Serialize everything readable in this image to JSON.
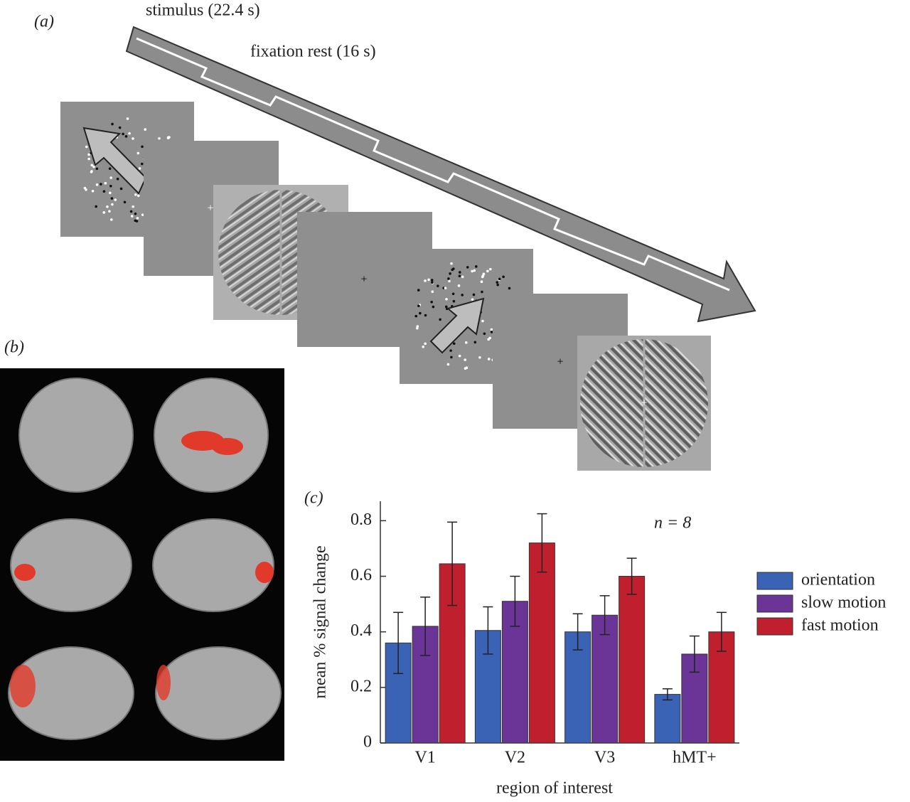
{
  "panels": {
    "a": "(a)",
    "b": "(b)",
    "c": "(c)"
  },
  "stimulus_diagram": {
    "stimulus_label": "stimulus (22.4 s)",
    "rest_label": "fixation rest (16 s)"
  },
  "chart_data": {
    "type": "bar",
    "x_label": "region of interest",
    "y_label": "mean % signal change",
    "annotation": "n = 8",
    "categories": [
      "V1",
      "V2",
      "V3",
      "hMT+"
    ],
    "series": [
      {
        "name": "orientation",
        "color": "#3a62b5",
        "values": [
          0.36,
          0.405,
          0.4,
          0.175
        ],
        "errors": [
          0.11,
          0.085,
          0.065,
          0.02
        ]
      },
      {
        "name": "slow motion",
        "color": "#6a3597",
        "values": [
          0.42,
          0.51,
          0.46,
          0.32
        ],
        "errors": [
          0.105,
          0.09,
          0.07,
          0.065
        ]
      },
      {
        "name": "fast motion",
        "color": "#c0202e",
        "values": [
          0.645,
          0.72,
          0.6,
          0.4
        ],
        "errors": [
          0.15,
          0.105,
          0.065,
          0.07
        ]
      }
    ],
    "ylim": [
      0,
      0.87
    ],
    "yticks": [
      0,
      0.2,
      0.4,
      0.6,
      0.8
    ],
    "legend": "right"
  }
}
